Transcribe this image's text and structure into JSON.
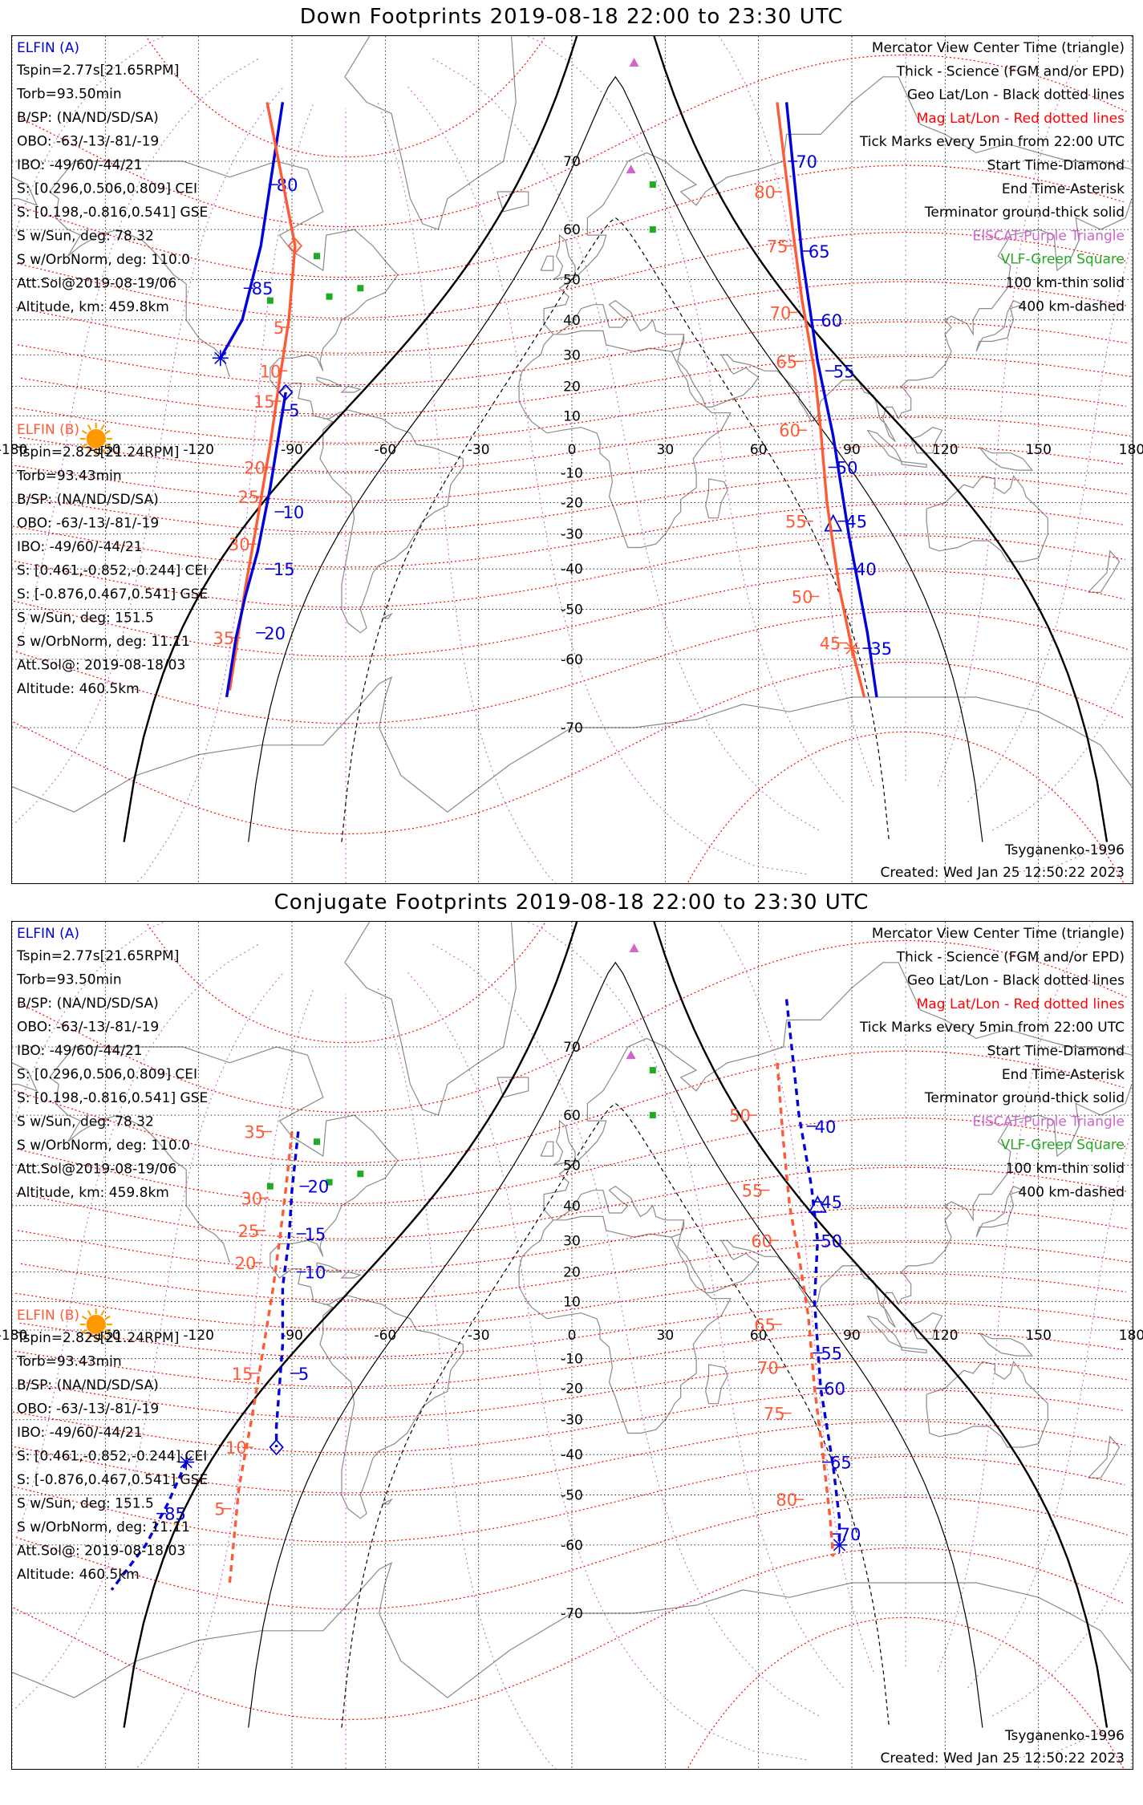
{
  "colors": {
    "elfin_a": "#0000dd",
    "elfin_b": "#ff5a36",
    "geo_grid": "#000000",
    "mag_grid": "#ff0000",
    "eiscat": "#cc66cc",
    "vlf": "#22aa22",
    "sun": "#ff9900",
    "coast": "#8a8a8a"
  },
  "icons": {
    "sun": "sun-icon",
    "eiscat": "purple-triangle-icon",
    "vlf": "green-square-icon",
    "start": "diamond-icon",
    "end": "asterisk-icon",
    "center": "triangle-icon"
  },
  "axis": {
    "lon_ticks": [
      "-180",
      "-150",
      "-120",
      "-90",
      "-60",
      "-30",
      "0",
      "30",
      "60",
      "90",
      "120",
      "150",
      "180"
    ],
    "lat_ticks": [
      "70",
      "60",
      "50",
      "40",
      "30",
      "20",
      "10",
      "0",
      "-10",
      "-20",
      "-30",
      "-40",
      "-50",
      "-60",
      "-70"
    ]
  },
  "panels": [
    {
      "title": "Down Footprints 2019-08-18 22:00 to 23:30 UTC",
      "sat_a": {
        "name": "ELFIN (A)",
        "lines": [
          "Tspin=2.77s[21.65RPM]",
          "Torb=93.50min",
          "B/SP: (NA/ND/SD/SA)",
          "OBO: -63/-13/-81/-19",
          "IBO: -49/60/-44/21",
          "S: [0.296,0.506,0.809] CEI",
          "S: [0.198,-0.816,0.541] GSE",
          "S w/Sun, deg: 78.32",
          "S w/OrbNorm, deg: 110.0",
          "Att.Sol@2019-08-19/06",
          "Altitude, km: 459.8km"
        ]
      },
      "sat_b": {
        "name": "ELFIN (B)",
        "lines": [
          "Tspin=2.82s[21.24RPM]",
          "Torb=93.43min",
          "B/SP: (NA/ND/SD/SA)",
          "OBO: -63/-13/-81/-19",
          "IBO: -49/60/-44/21",
          "S: [0.461,-0.852,-0.244] CEI",
          "S: [-0.876,0.467,0.541] GSE",
          "S w/Sun, deg: 151.5",
          "S w/OrbNorm, deg: 11.11",
          "Att.Sol@: 2019-08-18/03",
          "Altitude: 460.5km"
        ]
      },
      "legend": [
        {
          "text": "Mercator View Center Time (triangle)",
          "color": "#000000"
        },
        {
          "text": "Thick - Science (FGM and/or EPD)",
          "color": "#000000"
        },
        {
          "text": "Geo Lat/Lon - Black dotted lines",
          "color": "#000000"
        },
        {
          "text": "Mag Lat/Lon - Red dotted lines",
          "color": "#ff0000"
        },
        {
          "text": "Tick Marks every 5min from 22:00 UTC",
          "color": "#000000"
        },
        {
          "text": "Start Time-Diamond",
          "color": "#000000"
        },
        {
          "text": "End Time-Asterisk",
          "color": "#000000"
        },
        {
          "text": "Terminator ground-thick solid",
          "color": "#000000"
        },
        {
          "text": "EISCAT-Purple Triangle",
          "color": "#cc66cc"
        },
        {
          "text": "VLF-Green Square",
          "color": "#22aa22"
        },
        {
          "text": "100 km-thin solid",
          "color": "#000000"
        },
        {
          "text": "400 km-dashed",
          "color": "#000000"
        }
      ],
      "model": "Tsyganenko-1996",
      "created": "Created: Wed Jan 25 12:50:22 2023",
      "dashed_tracks": false,
      "tracks": [
        {
          "id": "a_west",
          "sat": "A",
          "pts": [
            [
              -93,
              76
            ],
            [
              -100,
              57
            ],
            [
              -106,
              40
            ],
            [
              -113,
              29
            ]
          ],
          "start": null,
          "end": [
            -113,
            29
          ],
          "ticks": [
            {
              "t": "80",
              "at": [
                -96,
                67
              ]
            },
            {
              "t": "85",
              "at": [
                -104,
                48
              ]
            }
          ]
        },
        {
          "id": "b_west",
          "sat": "B",
          "pts": [
            [
              -98,
              76
            ],
            [
              -89,
              57
            ],
            [
              -91,
              40
            ],
            [
              -94,
              22
            ],
            [
              -97,
              0
            ],
            [
              -101,
              -25
            ],
            [
              -105,
              -45
            ],
            [
              -110,
              -65
            ]
          ],
          "start": [
            -89,
            57
          ],
          "end": null,
          "ticks": [
            {
              "t": "5",
              "at": [
                -92,
                38
              ]
            },
            {
              "t": "10",
              "at": [
                -93,
                25
              ]
            },
            {
              "t": "15",
              "at": [
                -95,
                15
              ]
            },
            {
              "t": "20",
              "at": [
                -98,
                -8
              ]
            },
            {
              "t": "25",
              "at": [
                -100,
                -18
              ]
            },
            {
              "t": "30",
              "at": [
                -103,
                -33
              ]
            },
            {
              "t": "35",
              "at": [
                -108,
                -56
              ]
            }
          ]
        },
        {
          "id": "a_mid",
          "sat": "A",
          "pts": [
            [
              -92,
              18
            ],
            [
              -94,
              5
            ],
            [
              -97,
              -15
            ],
            [
              -101,
              -35
            ],
            [
              -105,
              -47
            ],
            [
              -108,
              -56
            ],
            [
              -111,
              -66
            ]
          ],
          "start": [
            -92,
            18
          ],
          "end": null,
          "ticks": [
            {
              "t": "5",
              "at": [
                -92,
                12
              ]
            },
            {
              "t": "10",
              "at": [
                -94,
                -23
              ]
            },
            {
              "t": "15",
              "at": [
                -97,
                -40
              ]
            },
            {
              "t": "20",
              "at": [
                -100,
                -55
              ]
            }
          ]
        },
        {
          "id": "a_east",
          "sat": "A",
          "pts": [
            [
              69,
              76
            ],
            [
              74,
              55
            ],
            [
              79,
              28
            ],
            [
              84,
              3
            ],
            [
              89,
              -30
            ],
            [
              95,
              -55
            ],
            [
              98,
              -66
            ]
          ],
          "start": null,
          "end": null,
          "center": [
            84,
            -27
          ],
          "ticks": [
            {
              "t": "70",
              "at": [
                71,
                70
              ]
            },
            {
              "t": "65",
              "at": [
                75,
                56
              ]
            },
            {
              "t": "60",
              "at": [
                79,
                40
              ]
            },
            {
              "t": "55",
              "at": [
                83,
                25
              ]
            },
            {
              "t": "50",
              "at": [
                84,
                -8
              ]
            },
            {
              "t": "45",
              "at": [
                87,
                -26
              ]
            },
            {
              "t": "40",
              "at": [
                90,
                -40
              ]
            },
            {
              "t": "35",
              "at": [
                95,
                -58
              ]
            }
          ]
        },
        {
          "id": "b_east",
          "sat": "B",
          "pts": [
            [
              66,
              76
            ],
            [
              71,
              60
            ],
            [
              74,
              45
            ],
            [
              78,
              25
            ],
            [
              80,
              5
            ],
            [
              82,
              -20
            ],
            [
              86,
              -45
            ],
            [
              90,
              -58
            ],
            [
              94,
              -66
            ]
          ],
          "start": null,
          "end": [
            90,
            -58
          ],
          "ticks": [
            {
              "t": "80",
              "at": [
                66,
                66
              ]
            },
            {
              "t": "75",
              "at": [
                70,
                57
              ]
            },
            {
              "t": "70",
              "at": [
                71,
                42
              ]
            },
            {
              "t": "65",
              "at": [
                73,
                28
              ]
            },
            {
              "t": "60",
              "at": [
                74,
                5
              ]
            },
            {
              "t": "55",
              "at": [
                76,
                -26
              ]
            },
            {
              "t": "50",
              "at": [
                78,
                -47
              ]
            },
            {
              "t": "45",
              "at": [
                87,
                -57
              ]
            }
          ]
        }
      ]
    },
    {
      "title": "Conjugate Footprints 2019-08-18 22:00 to 23:30 UTC",
      "sat_a": {
        "name": "ELFIN (A)",
        "lines": [
          "Tspin=2.77s[21.65RPM]",
          "Torb=93.50min",
          "B/SP: (NA/ND/SD/SA)",
          "OBO: -63/-13/-81/-19",
          "IBO: -49/60/-44/21",
          "S: [0.296,0.506,0.809] CEI",
          "S: [0.198,-0.816,0.541] GSE",
          "S w/Sun, deg: 78.32",
          "S w/OrbNorm, deg: 110.0",
          "Att.Sol@2019-08-19/06",
          "Altitude, km: 459.8km"
        ]
      },
      "sat_b": {
        "name": "ELFIN (B)",
        "lines": [
          "Tspin=2.82s[21.24RPM]",
          "Torb=93.43min",
          "B/SP: (NA/ND/SD/SA)",
          "OBO: -63/-13/-81/-19",
          "IBO: -49/60/-44/21",
          "S: [0.461,-0.852,-0.244] CEI",
          "S: [-0.876,0.467,0.541] GSE",
          "S w/Sun, deg: 151.5",
          "S w/OrbNorm, deg: 11.11",
          "Att.Sol@: 2019-08-18/03",
          "Altitude: 460.5km"
        ]
      },
      "legend": [
        {
          "text": "Mercator View Center Time (triangle)",
          "color": "#000000"
        },
        {
          "text": "Thick - Science (FGM and/or EPD)",
          "color": "#000000"
        },
        {
          "text": "Geo Lat/Lon - Black dotted lines",
          "color": "#000000"
        },
        {
          "text": "Mag Lat/Lon - Red dotted lines",
          "color": "#ff0000"
        },
        {
          "text": "Tick Marks every 5min from 22:00 UTC",
          "color": "#000000"
        },
        {
          "text": "Start Time-Diamond",
          "color": "#000000"
        },
        {
          "text": "End Time-Asterisk",
          "color": "#000000"
        },
        {
          "text": "Terminator ground-thick solid",
          "color": "#000000"
        },
        {
          "text": "EISCAT-Purple Triangle",
          "color": "#cc66cc"
        },
        {
          "text": "VLF-Green Square",
          "color": "#22aa22"
        },
        {
          "text": "100 km-thin solid",
          "color": "#000000"
        },
        {
          "text": "400 km-dashed",
          "color": "#000000"
        }
      ],
      "model": "Tsyganenko-1996",
      "created": "Created: Wed Jan 25 12:50:22 2023",
      "dashed_tracks": true,
      "tracks": [
        {
          "id": "b_west",
          "sat": "B",
          "pts": [
            [
              -90,
              57
            ],
            [
              -92,
              44
            ],
            [
              -94,
              30
            ],
            [
              -96,
              15
            ],
            [
              -99,
              -5
            ],
            [
              -103,
              -30
            ],
            [
              -107,
              -48
            ],
            [
              -110,
              -66
            ]
          ],
          "start": null,
          "end": null,
          "ticks": [
            {
              "t": "35",
              "at": [
                -98,
                57
              ]
            },
            {
              "t": "30",
              "at": [
                -99,
                42
              ]
            },
            {
              "t": "25",
              "at": [
                -100,
                33
              ]
            },
            {
              "t": "20",
              "at": [
                -101,
                23
              ]
            },
            {
              "t": "15",
              "at": [
                -102,
                -15
              ]
            },
            {
              "t": "10",
              "at": [
                -104,
                -38
              ]
            },
            {
              "t": "5",
              "at": [
                -111,
                -53
              ]
            }
          ]
        },
        {
          "id": "a_west",
          "sat": "A",
          "pts": [
            [
              -88,
              57
            ],
            [
              -90,
              44
            ],
            [
              -91,
              30
            ],
            [
              -93,
              15
            ],
            [
              -93,
              -5
            ],
            [
              -95,
              -32
            ],
            [
              -95,
              -38
            ]
          ],
          "start": [
            -95,
            -38
          ],
          "end": null,
          "ticks": [
            {
              "t": "20",
              "at": [
                -86,
                45
              ]
            },
            {
              "t": "15",
              "at": [
                -87,
                32
              ]
            },
            {
              "t": "10",
              "at": [
                -87,
                20
              ]
            },
            {
              "t": "5",
              "at": [
                -89,
                -15
              ]
            }
          ]
        },
        {
          "id": "a_sw",
          "sat": "A",
          "pts": [
            [
              -124,
              -42
            ],
            [
              -130,
              -52
            ],
            [
              -137,
              -60
            ],
            [
              -148,
              -67
            ]
          ],
          "start": null,
          "end": [
            -124,
            -42
          ],
          "ticks": [
            {
              "t": "85",
              "at": [
                -132,
                -54
              ]
            }
          ]
        },
        {
          "id": "a_east",
          "sat": "A",
          "pts": [
            [
              69,
              75
            ],
            [
              73,
              60
            ],
            [
              77,
              45
            ],
            [
              79,
              30
            ],
            [
              78,
              10
            ],
            [
              80,
              -20
            ],
            [
              84,
              -43
            ],
            [
              86,
              -55
            ],
            [
              86,
              -60
            ]
          ],
          "start": null,
          "end": [
            86,
            -60
          ],
          "center": [
            79,
            40
          ],
          "ticks": [
            {
              "t": "40",
              "at": [
                77,
                58
              ]
            },
            {
              "t": "45",
              "at": [
                79,
                41
              ]
            },
            {
              "t": "50",
              "at": [
                79,
                30
              ]
            },
            {
              "t": "55",
              "at": [
                79,
                -8
              ]
            },
            {
              "t": "60",
              "at": [
                80,
                -20
              ]
            },
            {
              "t": "65",
              "at": [
                82,
                -42
              ]
            },
            {
              "t": "70",
              "at": [
                85,
                -58
              ]
            }
          ]
        },
        {
          "id": "b_east",
          "sat": "B",
          "pts": [
            [
              66,
              68
            ],
            [
              68,
              55
            ],
            [
              70,
              40
            ],
            [
              73,
              25
            ],
            [
              76,
              5
            ],
            [
              78,
              -20
            ],
            [
              81,
              -42
            ],
            [
              83,
              -55
            ],
            [
              84,
              -62
            ]
          ],
          "start": null,
          "end": null,
          "ticks": [
            {
              "t": "50",
              "at": [
                58,
                60
              ]
            },
            {
              "t": "55",
              "at": [
                62,
                44
              ]
            },
            {
              "t": "60",
              "at": [
                65,
                30
              ]
            },
            {
              "t": "65",
              "at": [
                66,
                2
              ]
            },
            {
              "t": "70",
              "at": [
                67,
                -13
              ]
            },
            {
              "t": "75",
              "at": [
                69,
                -28
              ]
            },
            {
              "t": "80",
              "at": [
                73,
                -51
              ]
            }
          ]
        }
      ]
    }
  ],
  "eiscat": [
    [
      20,
      79
    ],
    [
      19,
      69
    ]
  ],
  "vlf": [
    [
      26,
      67
    ],
    [
      26,
      60
    ],
    [
      -78,
      46
    ],
    [
      -82,
      55
    ],
    [
      -97,
      45
    ],
    [
      -68,
      48
    ]
  ]
}
